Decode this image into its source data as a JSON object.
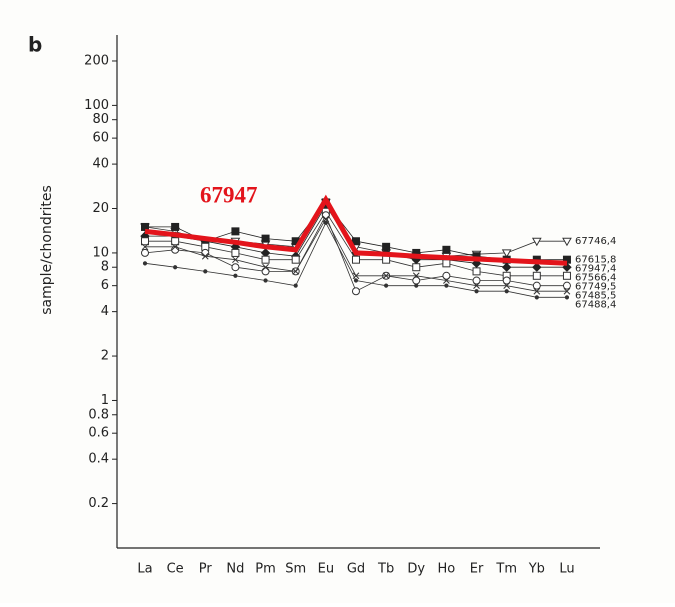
{
  "chart_data": {
    "type": "line",
    "panel_label": "b",
    "y_label": "sample/chondrites",
    "log_scale": true,
    "grid": false,
    "categories": [
      "La",
      "Ce",
      "Pr",
      "Nd",
      "Pm",
      "Sm",
      "Eu",
      "Gd",
      "Tb",
      "Dy",
      "Ho",
      "Er",
      "Tm",
      "Yb",
      "Lu"
    ],
    "ylim": [
      0.1,
      300
    ],
    "yticks": [
      0.2,
      0.4,
      0.6,
      0.8,
      1,
      2,
      4,
      6,
      8,
      10,
      20,
      40,
      60,
      80,
      100,
      200
    ],
    "series": [
      {
        "name": "67746,4",
        "color": "#333333",
        "marker": "triangle-down",
        "values": [
          15,
          14,
          12,
          12,
          11.5,
          11,
          22,
          11,
          10,
          9.5,
          9.5,
          9.8,
          10,
          12,
          12
        ]
      },
      {
        "name": "67615,8",
        "color": "#222222",
        "marker": "square-filled",
        "values": [
          15,
          15,
          12,
          14,
          12.5,
          12,
          22,
          12,
          11,
          10,
          10.5,
          9.5,
          9,
          9,
          9
        ]
      },
      {
        "name": "67947,4",
        "color": "#222222",
        "marker": "diamond",
        "values": [
          13,
          13,
          12,
          11,
          10,
          9.5,
          21,
          10,
          10,
          9,
          9,
          8.5,
          8,
          8,
          8
        ]
      },
      {
        "name": "67566,4",
        "color": "#333333",
        "marker": "square",
        "values": [
          12,
          12,
          11,
          10,
          9,
          9,
          19,
          9,
          9,
          8,
          8.5,
          7.5,
          7,
          7,
          7
        ]
      },
      {
        "name": "67749,5",
        "color": "#333333",
        "marker": "circle",
        "values": [
          10,
          10.5,
          10,
          8,
          7.5,
          7.5,
          18,
          5.5,
          7,
          6.5,
          7,
          6.5,
          6.5,
          6,
          6
        ]
      },
      {
        "name": "67485,5",
        "color": "#333333",
        "marker": "cross",
        "values": [
          11,
          11,
          9.5,
          9,
          8,
          7.5,
          17,
          7,
          7,
          7,
          6.5,
          6,
          6,
          5.5,
          5.5
        ]
      },
      {
        "name": "67488,4",
        "color": "#333333",
        "marker": "dot",
        "values": [
          8.5,
          8,
          7.5,
          7,
          6.5,
          6,
          16,
          6.5,
          6,
          6,
          6,
          5.5,
          5.5,
          5,
          5
        ]
      },
      {
        "name": "67947",
        "color": "#e3141b",
        "marker": "none",
        "highlight": true,
        "values": [
          14,
          13.3,
          12.5,
          11.8,
          11,
          10.5,
          23,
          10,
          9.8,
          9.5,
          9.3,
          9.1,
          8.9,
          8.7,
          8.5
        ]
      }
    ]
  }
}
